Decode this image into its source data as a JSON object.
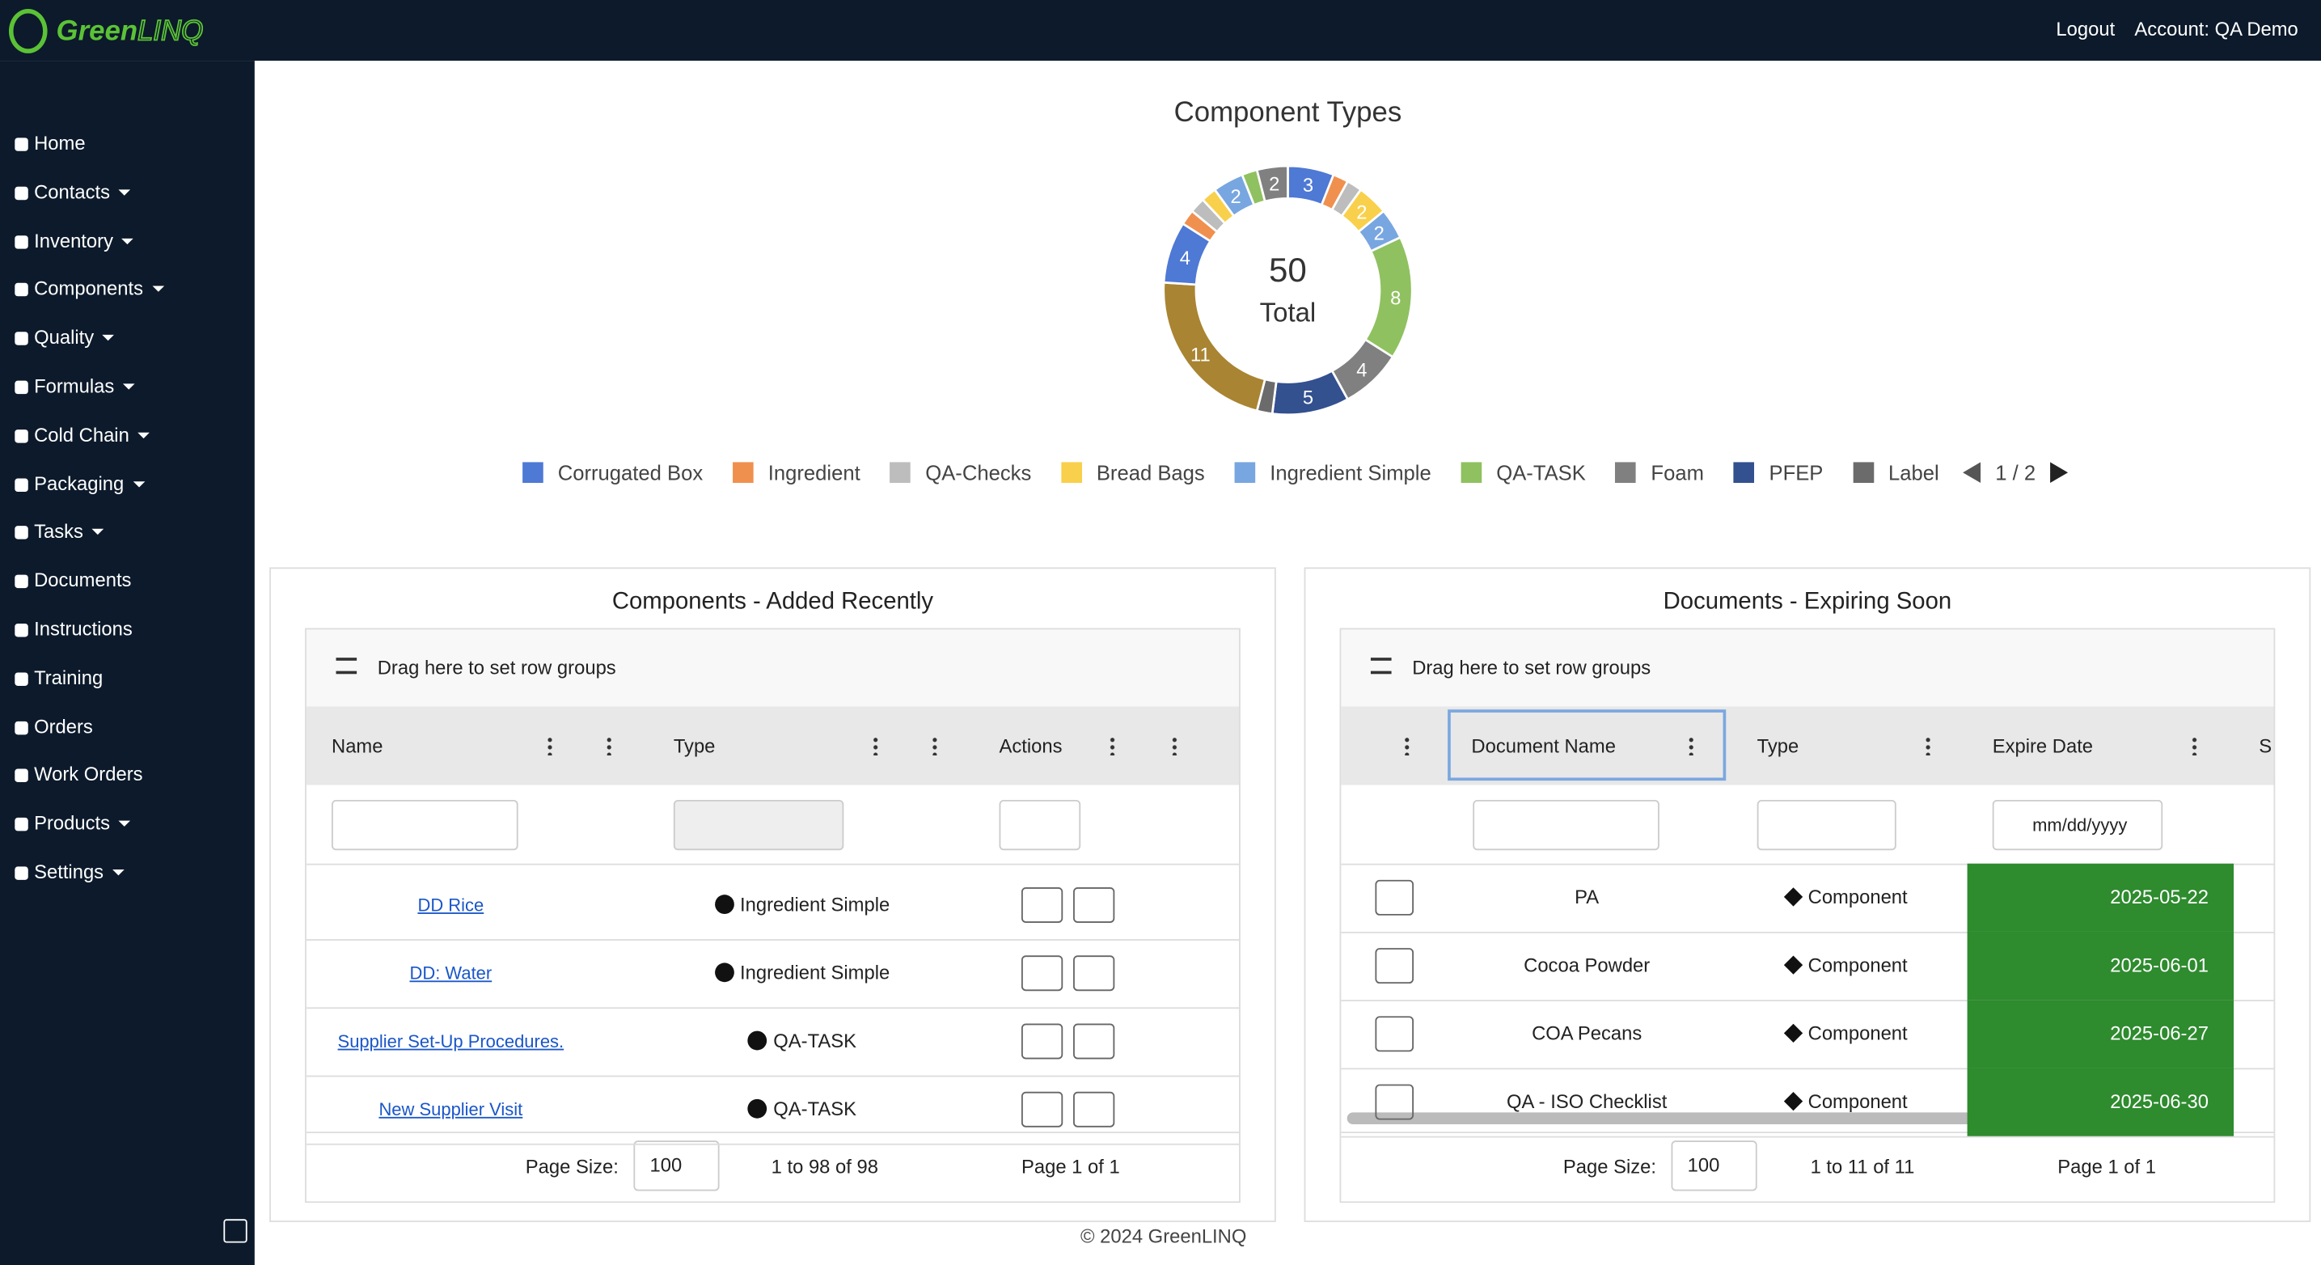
{
  "header": {
    "logo_green": "Green",
    "logo_linq": "LINQ",
    "logout": "Logout",
    "account": "Account: QA Demo"
  },
  "nav": [
    {
      "label": "Home",
      "dropdown": false
    },
    {
      "label": "Contacts",
      "dropdown": true
    },
    {
      "label": "Inventory",
      "dropdown": true
    },
    {
      "label": "Components",
      "dropdown": true
    },
    {
      "label": "Quality",
      "dropdown": true
    },
    {
      "label": "Formulas",
      "dropdown": true
    },
    {
      "label": "Cold Chain",
      "dropdown": true
    },
    {
      "label": "Packaging",
      "dropdown": true
    },
    {
      "label": "Tasks",
      "dropdown": true
    },
    {
      "label": "Documents",
      "dropdown": false
    },
    {
      "label": "Instructions",
      "dropdown": false
    },
    {
      "label": "Training",
      "dropdown": false
    },
    {
      "label": "Orders",
      "dropdown": false
    },
    {
      "label": "Work Orders",
      "dropdown": false
    },
    {
      "label": "Products",
      "dropdown": true
    },
    {
      "label": "Settings",
      "dropdown": true
    }
  ],
  "chart_data": {
    "type": "pie",
    "title": "Component Types",
    "total": 50,
    "total_label": "Total",
    "categories": [
      "Corrugated Box",
      "Ingredient",
      "QA-Checks",
      "Bread Bags",
      "Ingredient Simple",
      "QA-TASK",
      "Foam",
      "PFEP",
      "Label",
      null,
      null,
      null,
      null,
      null,
      null,
      null,
      null
    ],
    "values": [
      3,
      1,
      1,
      2,
      2,
      8,
      4,
      5,
      1,
      11,
      4,
      1,
      1,
      1,
      2,
      1,
      2
    ],
    "colors": [
      "#4e79d4",
      "#f0904f",
      "#bdbdbd",
      "#f9d04b",
      "#78a6e0",
      "#8fc160",
      "#808080",
      "#33508f",
      "#6b6b6b",
      "#a98432",
      "#4e79d4",
      "#f0904f",
      "#bdbdbd",
      "#f9d04b",
      "#78a6e0",
      "#8fc160",
      "#808080"
    ],
    "legend_page": "1 / 2"
  },
  "components_table": {
    "title": "Components - Added Recently",
    "group_hint": "Drag here to set row groups",
    "columns": [
      "Name",
      "Type",
      "Actions"
    ],
    "rows": [
      [
        "DD Rice",
        "Ingredient Simple"
      ],
      [
        "DD: Water",
        "Ingredient Simple"
      ],
      [
        "Supplier Set-Up Procedures.",
        "QA-TASK"
      ],
      [
        "New Supplier Visit",
        "QA-TASK"
      ]
    ],
    "page_size_label": "Page Size:",
    "page_size": 100,
    "range": "1 to 98 of 98",
    "page": "Page 1 of 1"
  },
  "documents_table": {
    "title": "Documents - Expiring Soon",
    "group_hint": "Drag here to set row groups",
    "columns": [
      "Document Name",
      "Type",
      "Expire Date",
      "S"
    ],
    "date_placeholder": "mm/dd/yyyy",
    "rows": [
      [
        "PA",
        "Component",
        "2025-05-22"
      ],
      [
        "Cocoa Powder",
        "Component",
        "2025-06-01"
      ],
      [
        "COA Pecans",
        "Component",
        "2025-06-27"
      ],
      [
        "QA - ISO Checklist",
        "Component",
        "2025-06-30"
      ]
    ],
    "page_size_label": "Page Size:",
    "page_size": 100,
    "range": "1 to 11 of 11",
    "page": "Page 1 of 1"
  },
  "footer": "© 2024 GreenLINQ"
}
